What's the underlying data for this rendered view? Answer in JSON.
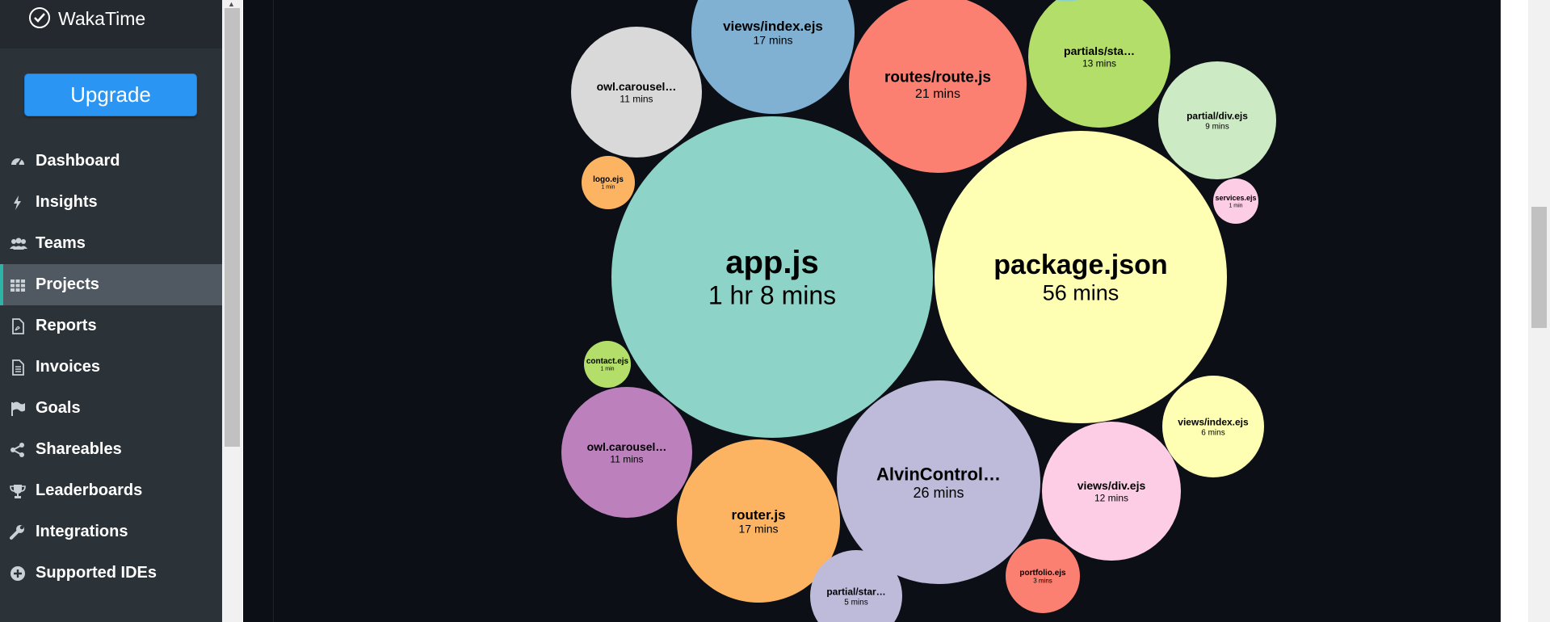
{
  "app": {
    "name": "WakaTime",
    "upgrade_label": "Upgrade"
  },
  "nav": {
    "items": [
      {
        "label": "Dashboard",
        "icon": "dashboard-icon"
      },
      {
        "label": "Insights",
        "icon": "bolt-icon"
      },
      {
        "label": "Teams",
        "icon": "users-icon"
      },
      {
        "label": "Projects",
        "icon": "grid-icon",
        "active": true
      },
      {
        "label": "Reports",
        "icon": "pdf-file-icon"
      },
      {
        "label": "Invoices",
        "icon": "document-icon"
      },
      {
        "label": "Goals",
        "icon": "flag-icon"
      },
      {
        "label": "Shareables",
        "icon": "share-icon"
      },
      {
        "label": "Leaderboards",
        "icon": "trophy-icon"
      },
      {
        "label": "Integrations",
        "icon": "wrench-icon"
      },
      {
        "label": "Supported IDEs",
        "icon": "plus-circle-icon"
      }
    ]
  },
  "colors": {
    "sidebar_bg": "#2b3238",
    "accent": "#2cb5a6",
    "upgrade": "#2b95f4",
    "chart_bg": "#0c1016"
  },
  "chart_data": {
    "type": "bubble",
    "title": "",
    "files": [
      {
        "name": "app.js",
        "duration": "1 hr 8 mins",
        "minutes": 68,
        "color": "#8dd3c7"
      },
      {
        "name": "package.json",
        "duration": "56 mins",
        "minutes": 56,
        "color": "#ffffb3"
      },
      {
        "name": "AlvinControl…",
        "duration": "26 mins",
        "minutes": 26,
        "color": "#bebada"
      },
      {
        "name": "routes/route.js",
        "duration": "21 mins",
        "minutes": 21,
        "color": "#fb8072"
      },
      {
        "name": "views/index.ejs",
        "duration": "17 mins",
        "minutes": 17,
        "color": "#80b1d3"
      },
      {
        "name": "router.js",
        "duration": "17 mins",
        "minutes": 17,
        "color": "#fdb462"
      },
      {
        "name": "partials/sta…",
        "duration": "13 mins",
        "minutes": 13,
        "color": "#b3de69"
      },
      {
        "name": "views/div.ejs",
        "duration": "12 mins",
        "minutes": 12,
        "color": "#fccde5"
      },
      {
        "name": "owl.carousel…",
        "duration": "11 mins",
        "minutes": 11,
        "color": "#d9d9d9"
      },
      {
        "name": "owl.carousel…",
        "duration": "11 mins",
        "minutes": 11,
        "color": "#bc80bd"
      },
      {
        "name": "partial/div.ejs",
        "duration": "9 mins",
        "minutes": 9,
        "color": "#ccebc5"
      },
      {
        "name": "views/index.ejs",
        "duration": "6 mins",
        "minutes": 6,
        "color": "#ffffb3"
      },
      {
        "name": "partial/star…",
        "duration": "5 mins",
        "minutes": 5,
        "color": "#bebada"
      },
      {
        "name": "portfolio.ejs",
        "duration": "3 mins",
        "minutes": 3,
        "color": "#fb8072"
      },
      {
        "name": "logo.ejs",
        "duration": "1 min",
        "minutes": 1,
        "color": "#fdb462"
      },
      {
        "name": "contact.ejs",
        "duration": "1 min",
        "minutes": 1,
        "color": "#b3de69"
      },
      {
        "name": "services.ejs",
        "duration": "1 min",
        "minutes": 1,
        "color": "#fccde5"
      },
      {
        "name": "",
        "duration": "",
        "color": "#ffffb3"
      },
      {
        "name": "",
        "duration": "",
        "color": "#8dd3c7"
      }
    ]
  }
}
